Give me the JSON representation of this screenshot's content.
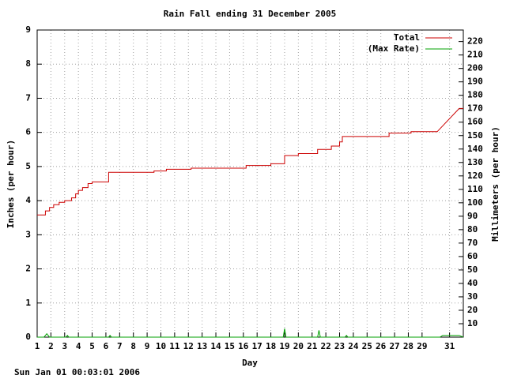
{
  "chart_data": {
    "type": "line",
    "title": "Rain Fall ending 31 December 2005",
    "x_label": "Day",
    "y_label": "Inches (per hour)",
    "y2_label": "Millimeters (per hour)",
    "timestamp": "Sun Jan 01 00:03:01 2006",
    "xlim": [
      1,
      32
    ],
    "xticks": [
      1,
      2,
      3,
      4,
      5,
      6,
      7,
      8,
      9,
      10,
      11,
      12,
      13,
      14,
      15,
      16,
      17,
      18,
      19,
      20,
      21,
      22,
      23,
      24,
      25,
      26,
      27,
      28,
      29,
      31
    ],
    "ylim": [
      0,
      9
    ],
    "yticks": [
      0,
      1,
      2,
      3,
      4,
      5,
      6,
      7,
      8,
      9
    ],
    "y2lim": [
      0,
      228.6
    ],
    "y2ticks": [
      10,
      20,
      30,
      40,
      50,
      60,
      70,
      80,
      90,
      100,
      110,
      120,
      130,
      140,
      150,
      160,
      170,
      180,
      190,
      200,
      210,
      220
    ],
    "grid": true,
    "legend": "top-right",
    "series": [
      {
        "name": "Total",
        "color": "#cc0000",
        "x": [
          1,
          1.6,
          1.6,
          1.9,
          1.9,
          2.2,
          2.2,
          2.6,
          2.6,
          3,
          3,
          3.5,
          3.5,
          3.8,
          3.8,
          4,
          4,
          4.3,
          4.3,
          4.7,
          4.7,
          5,
          5,
          6.2,
          6.2,
          9.5,
          9.5,
          10.4,
          10.4,
          12.2,
          12.2,
          16.2,
          16.2,
          18,
          18,
          19,
          19,
          20,
          20,
          21.4,
          21.4,
          22.4,
          22.4,
          23,
          23,
          23.2,
          23.2,
          26.6,
          26.6,
          28.2,
          28.2,
          30.1,
          31.7,
          32
        ],
        "values": [
          3.58,
          3.58,
          3.7,
          3.7,
          3.8,
          3.8,
          3.88,
          3.88,
          3.95,
          3.95,
          4.0,
          4.0,
          4.08,
          4.08,
          4.2,
          4.2,
          4.3,
          4.3,
          4.38,
          4.38,
          4.5,
          4.5,
          4.55,
          4.55,
          4.83,
          4.83,
          4.87,
          4.87,
          4.92,
          4.92,
          4.95,
          4.95,
          5.03,
          5.03,
          5.08,
          5.08,
          5.32,
          5.32,
          5.38,
          5.38,
          5.5,
          5.5,
          5.6,
          5.6,
          5.72,
          5.72,
          5.88,
          5.88,
          5.98,
          5.98,
          6.02,
          6.02,
          6.7,
          6.7
        ]
      },
      {
        "name": "(Max Rate)",
        "color": "#00a000",
        "x": [
          1,
          1.5,
          1.7,
          1.9,
          2.1,
          3.1,
          3.2,
          3.3,
          6.2,
          6.3,
          6.4,
          18.9,
          19,
          19.1,
          21.4,
          21.5,
          21.6,
          23.4,
          23.5,
          23.6,
          30.3,
          30.5,
          31.7,
          32
        ],
        "values": [
          0,
          0,
          0.1,
          0,
          0,
          0,
          0.05,
          0,
          0,
          0.05,
          0,
          0,
          0.25,
          0,
          0,
          0.2,
          0,
          0,
          0.05,
          0,
          0,
          0.05,
          0.05,
          0
        ]
      }
    ]
  }
}
